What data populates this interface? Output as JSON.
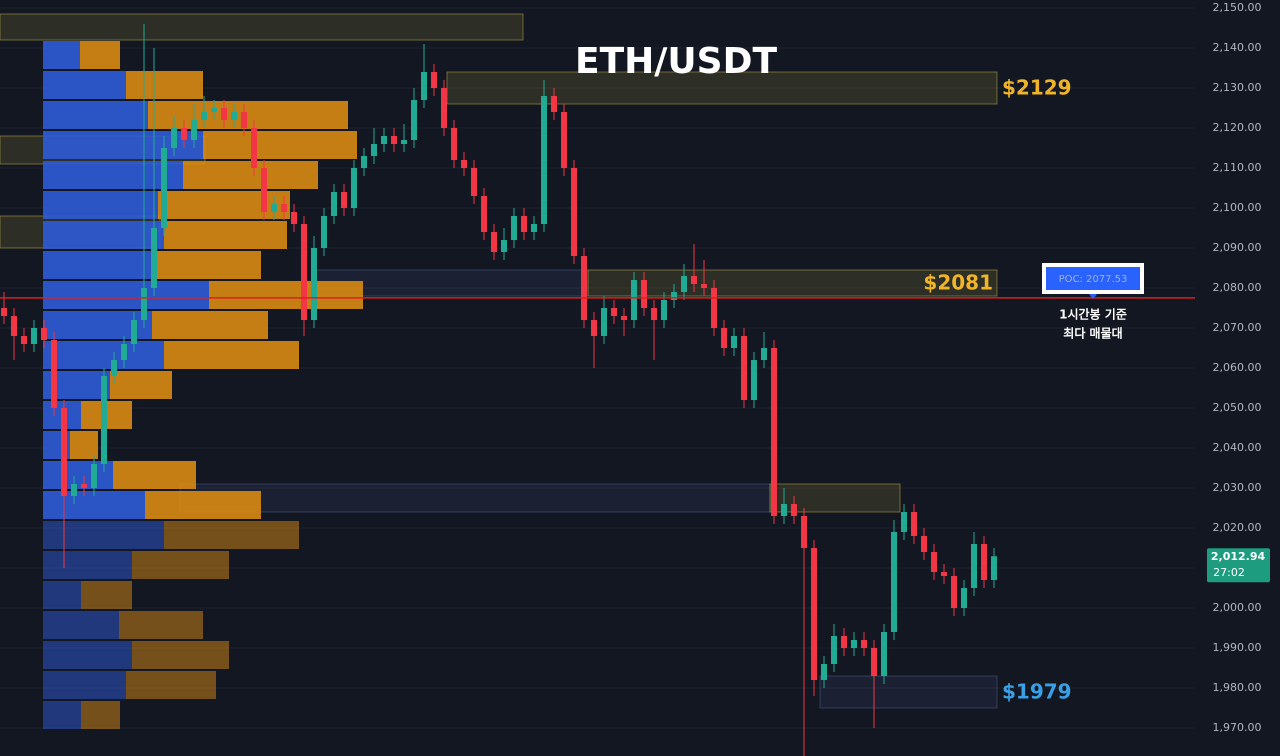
{
  "chart_data": {
    "type": "candlestick",
    "title": "ETH/USDT",
    "categories": [
      null,
      null,
      null,
      null,
      null,
      null,
      null,
      null,
      null,
      null,
      null,
      null,
      null,
      null,
      null,
      null,
      null,
      null,
      null,
      null,
      null,
      null,
      null,
      null,
      null,
      null,
      null,
      null,
      null,
      null,
      null,
      null,
      null,
      null,
      null,
      null,
      null,
      null,
      null,
      null,
      null,
      null,
      null,
      null,
      null,
      null,
      null,
      null,
      null,
      null,
      null,
      null,
      null,
      null,
      null,
      null,
      null,
      null,
      null,
      null,
      null,
      null,
      null,
      null,
      null,
      null,
      null,
      null,
      null,
      null,
      null,
      null,
      null,
      null,
      null,
      null,
      null,
      null,
      null,
      null,
      null,
      null,
      null,
      null,
      null,
      null,
      null,
      null,
      null,
      null,
      null,
      null,
      null,
      null,
      null,
      null,
      null,
      null,
      null,
      null
    ],
    "open": [
      2075,
      2073,
      2068,
      2066,
      2070,
      2067,
      2050,
      2028,
      2031,
      2030,
      2036,
      2058,
      2062,
      2066,
      2072,
      2080,
      2095,
      2115,
      2120,
      2117,
      2122,
      2124,
      2125,
      2122,
      2124,
      2120,
      2110,
      2099,
      2101,
      2099,
      2096,
      2072,
      2090,
      2098,
      2104,
      2100,
      2110,
      2113,
      2116,
      2118,
      2116,
      2117,
      2127,
      2134,
      2130,
      2120,
      2112,
      2110,
      2103,
      2094,
      2089,
      2092,
      2098,
      2094,
      2096,
      2128,
      2124,
      2110,
      2088,
      2072,
      2068,
      2075,
      2073,
      2072,
      2082,
      2075,
      2072,
      2077,
      2079,
      2083,
      2081,
      2080,
      2070,
      2065,
      2068,
      2052,
      2062,
      2065,
      2023,
      2026,
      2023,
      2015,
      1982,
      1986,
      1993,
      1990,
      1992,
      1990,
      1983,
      1994,
      2019,
      2024,
      2018,
      2014,
      2009,
      2008,
      2000,
      2005,
      2016,
      2007
    ],
    "high": [
      2079,
      2075,
      2070,
      2072,
      2072,
      2069,
      2052,
      2033,
      2033,
      2038,
      2060,
      2064,
      2068,
      2074,
      2146,
      2140,
      2118,
      2123,
      2122,
      2126,
      2128,
      2127,
      2127,
      2126,
      2126,
      2122,
      2112,
      2103,
      2103,
      2101,
      2098,
      2093,
      2100,
      2106,
      2106,
      2112,
      2115,
      2120,
      2120,
      2120,
      2121,
      2130,
      2141,
      2136,
      2132,
      2122,
      2114,
      2112,
      2105,
      2096,
      2095,
      2100,
      2100,
      2098,
      2132,
      2130,
      2126,
      2112,
      2090,
      2074,
      2078,
      2077,
      2075,
      2084,
      2084,
      2077,
      2079,
      2081,
      2086,
      2091,
      2087,
      2082,
      2072,
      2070,
      2070,
      2064,
      2069,
      2067,
      2030,
      2028,
      2025,
      2017,
      1988,
      1996,
      1995,
      1994,
      1994,
      1992,
      1996,
      2022,
      2026,
      2026,
      2020,
      2016,
      2011,
      2010,
      2007,
      2019,
      2018,
      2015
    ],
    "low": [
      2071,
      2062,
      2064,
      2064,
      2065,
      2048,
      2010,
      2026,
      2028,
      2028,
      2034,
      2056,
      2060,
      2064,
      2070,
      2078,
      2093,
      2113,
      2115,
      2115,
      2120,
      2122,
      2120,
      2120,
      2118,
      2108,
      2097,
      2097,
      2097,
      2094,
      2068,
      2070,
      2088,
      2096,
      2098,
      2098,
      2108,
      2111,
      2114,
      2114,
      2114,
      2115,
      2125,
      2128,
      2118,
      2110,
      2108,
      2101,
      2092,
      2087,
      2087,
      2090,
      2092,
      2092,
      2094,
      2122,
      2108,
      2086,
      2070,
      2060,
      2066,
      2071,
      2068,
      2070,
      2073,
      2062,
      2070,
      2075,
      2077,
      2079,
      2078,
      2068,
      2063,
      2063,
      2050,
      2050,
      2060,
      2021,
      2021,
      2021,
      1963,
      1978,
      1980,
      1984,
      1988,
      1988,
      1988,
      1970,
      1981,
      1992,
      2017,
      2016,
      2012,
      2007,
      2006,
      1998,
      1998,
      2003,
      2005,
      2005
    ],
    "close": [
      2073,
      2068,
      2066,
      2070,
      2067,
      2050,
      2028,
      2031,
      2030,
      2036,
      2058,
      2062,
      2066,
      2072,
      2080,
      2095,
      2115,
      2120,
      2117,
      2122,
      2124,
      2125,
      2122,
      2124,
      2120,
      2110,
      2099,
      2101,
      2099,
      2096,
      2072,
      2090,
      2098,
      2104,
      2100,
      2110,
      2113,
      2116,
      2118,
      2116,
      2117,
      2127,
      2134,
      2130,
      2120,
      2112,
      2110,
      2103,
      2094,
      2089,
      2092,
      2098,
      2094,
      2096,
      2128,
      2124,
      2110,
      2088,
      2072,
      2068,
      2075,
      2073,
      2072,
      2082,
      2075,
      2072,
      2077,
      2079,
      2083,
      2081,
      2080,
      2070,
      2065,
      2068,
      2052,
      2062,
      2065,
      2023,
      2026,
      2023,
      2015,
      1982,
      1986,
      1993,
      1990,
      1992,
      1990,
      1983,
      1994,
      2019,
      2024,
      2018,
      2014,
      2009,
      2008,
      2000,
      2005,
      2016,
      2007,
      2012.94
    ],
    "up_color": "#22ab94",
    "down_color": "#f23645",
    "ylim": [
      1963,
      2152
    ],
    "yticks": [
      {
        "value": 2150,
        "label": "2,150.00"
      },
      {
        "value": 2140,
        "label": "2,140.00"
      },
      {
        "value": 2130,
        "label": "2,130.00"
      },
      {
        "value": 2120,
        "label": "2,120.00"
      },
      {
        "value": 2110,
        "label": "2,110.00"
      },
      {
        "value": 2100,
        "label": "2,100.00"
      },
      {
        "value": 2090,
        "label": "2,090.00"
      },
      {
        "value": 2080,
        "label": "2,080.00"
      },
      {
        "value": 2070,
        "label": "2,070.00"
      },
      {
        "value": 2060,
        "label": "2,060.00"
      },
      {
        "value": 2050,
        "label": "2,050.00"
      },
      {
        "value": 2040,
        "label": "2,040.00"
      },
      {
        "value": 2030,
        "label": "2,030.00"
      },
      {
        "value": 2020,
        "label": "2,020.00"
      },
      {
        "value": 2010,
        "label": "2,010.00"
      },
      {
        "value": 2000,
        "label": "2,000.00"
      },
      {
        "value": 1990,
        "label": "1,990.00"
      },
      {
        "value": 1980,
        "label": "1,980.00"
      },
      {
        "value": 1970,
        "label": "1,970.00"
      }
    ],
    "grid": true,
    "volume_profile": {
      "bins": [
        2142,
        2134.5,
        2127,
        2119.5,
        2112,
        2104.5,
        2097,
        2089.5,
        2082,
        2074.5,
        2067,
        2059.5,
        2052,
        2044.5,
        2037,
        2029.5,
        2022,
        2014.5,
        2007,
        1999.5,
        1992,
        1984.5,
        1977,
        1969.5
      ],
      "buy": [
        37,
        83,
        105,
        160,
        140,
        115,
        121,
        109,
        166,
        109,
        121,
        67,
        38,
        27,
        70,
        102,
        121,
        89,
        38,
        76,
        89,
        83,
        38
      ],
      "sell": [
        40,
        77,
        200,
        154,
        135,
        132,
        123,
        109,
        154,
        116,
        135,
        62,
        51,
        28,
        83,
        116,
        135,
        97,
        51,
        84,
        97,
        90,
        39
      ],
      "buy_color": "#2f5bd6",
      "sell_color": "#d98a12"
    },
    "zones": [
      {
        "ylim": [
          2142,
          2148.5
        ],
        "color": "#b8a640"
      },
      {
        "ylim": [
          2126,
          2134
        ],
        "color": "#b8a640",
        "label": "$2129",
        "label_color": "#f0b429"
      },
      {
        "ylim": [
          2111,
          2118
        ],
        "color": "#b8a640"
      },
      {
        "ylim": [
          2090,
          2098
        ],
        "color": "#b8a640"
      },
      {
        "ylim": [
          2078,
          2084.5
        ],
        "color": "#4a5a8a"
      },
      {
        "ylim": [
          2078,
          2084.5
        ],
        "color": "#b8a640",
        "label": "$2081",
        "label_color": "#f0b429"
      },
      {
        "ylim": [
          2024,
          2031
        ],
        "color": "#4a5a8a"
      },
      {
        "ylim": [
          2024,
          2031
        ],
        "color": "#b8a640"
      },
      {
        "ylim": [
          1975,
          1983
        ],
        "color": "#4a5a8a",
        "label": "$1979",
        "label_color": "#3aa0e6"
      }
    ],
    "poc": {
      "value": 2077.53,
      "label": "POC: 2077.53",
      "color": "#e01e1e"
    },
    "annotations": [
      "1시간봉 기준",
      "최다 매물대"
    ],
    "last_price": {
      "value": 2012.94,
      "label": "2,012.94"
    },
    "countdown": "27:02"
  }
}
